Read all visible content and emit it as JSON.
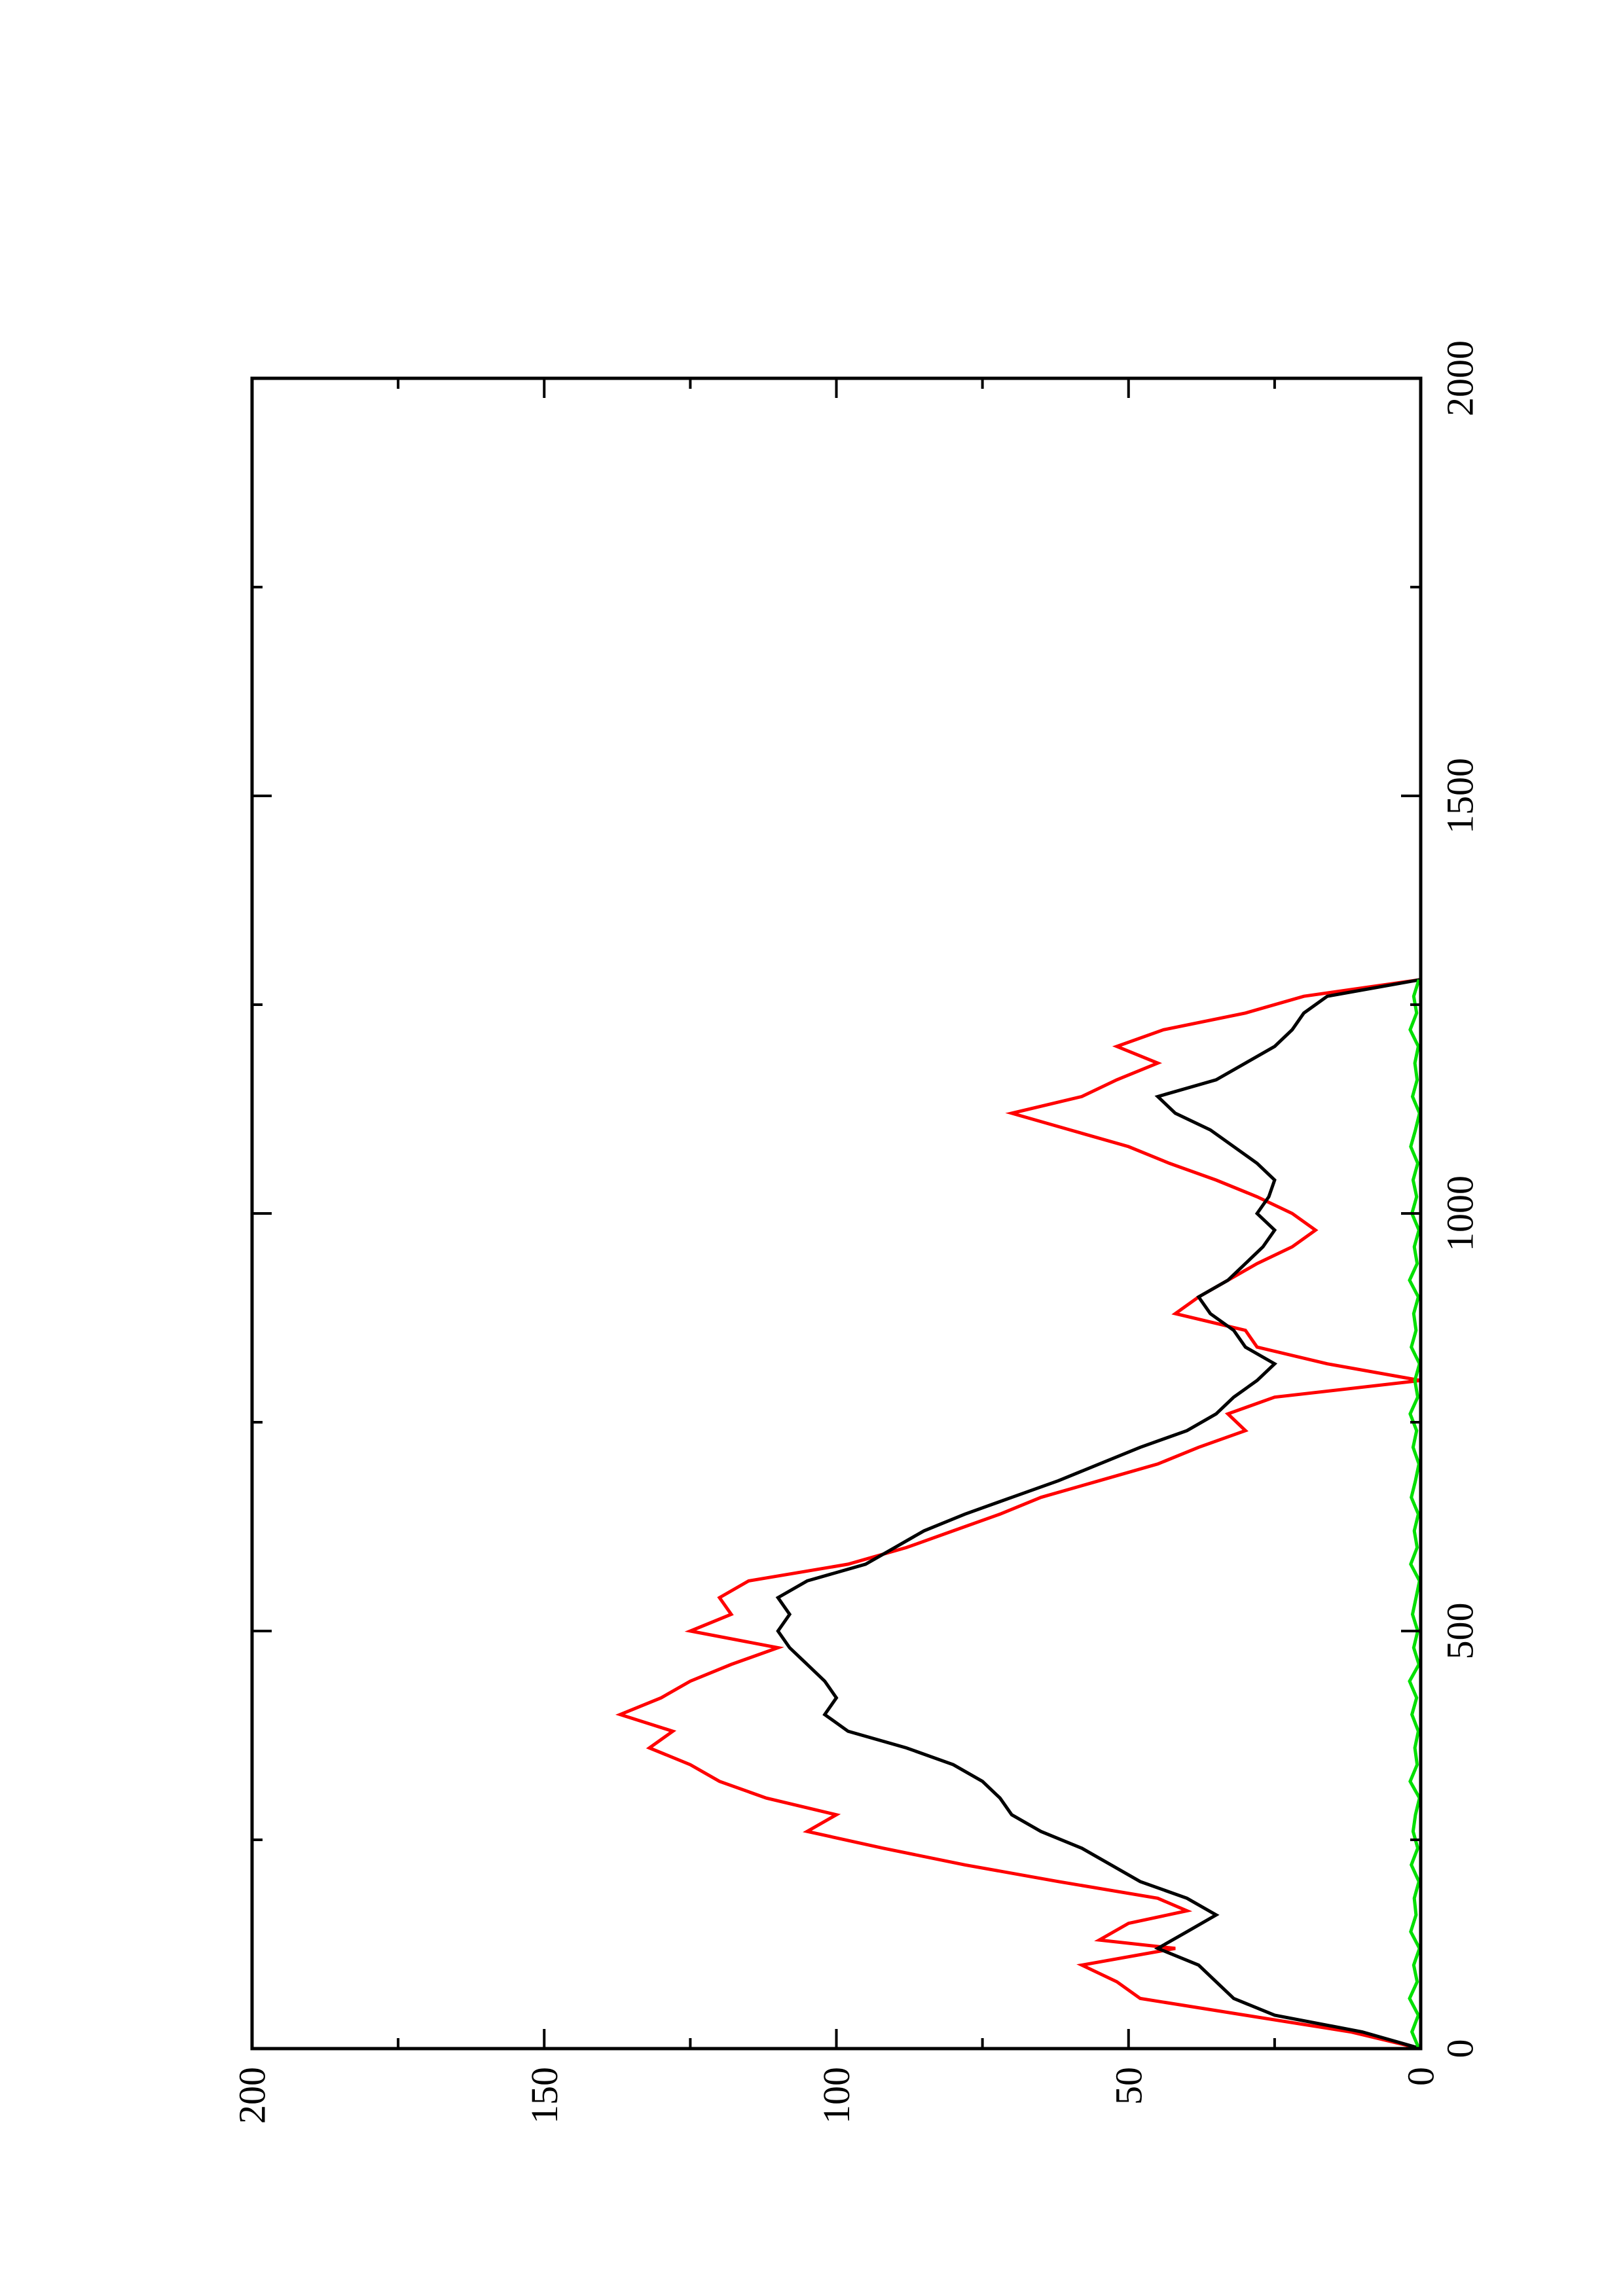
{
  "chart_data": {
    "type": "line",
    "title": "",
    "xlabel": "",
    "ylabel": "",
    "orientation": "rotated-90-counterclockwise",
    "xlim": [
      0,
      2000
    ],
    "ylim": [
      0,
      200
    ],
    "x_major_ticks": [
      0,
      500,
      1000,
      1500,
      2000
    ],
    "x_tick_labels": [
      "0",
      "500",
      "1000",
      "1500",
      "2000"
    ],
    "x_minor_ticks": [
      250,
      750,
      1250,
      1750
    ],
    "y_major_ticks": [
      0,
      50,
      100,
      150,
      200
    ],
    "y_tick_labels": [
      "0",
      "50",
      "100",
      "150",
      "200"
    ],
    "y_minor_ticks": [
      25,
      75,
      125,
      175
    ],
    "grid": false,
    "legend": "none",
    "series": [
      {
        "color": "#ff0000",
        "x": [
          0,
          20,
          40,
          60,
          80,
          100,
          120,
          130,
          150,
          165,
          180,
          200,
          220,
          240,
          260,
          280,
          300,
          320,
          340,
          360,
          380,
          400,
          420,
          440,
          460,
          480,
          500,
          520,
          540,
          560,
          580,
          600,
          620,
          640,
          660,
          680,
          700,
          720,
          740,
          760,
          780,
          800,
          820,
          840,
          860,
          880,
          900,
          920,
          940,
          960,
          980,
          1000,
          1020,
          1040,
          1060,
          1080,
          1100,
          1120,
          1140,
          1160,
          1180,
          1200,
          1220,
          1240,
          1260,
          1280
        ],
        "y": [
          0,
          12,
          30,
          48,
          52,
          58,
          42,
          55,
          50,
          40,
          45,
          62,
          78,
          92,
          105,
          100,
          112,
          120,
          125,
          132,
          128,
          137,
          130,
          125,
          118,
          110,
          125,
          118,
          120,
          115,
          98,
          88,
          80,
          72,
          65,
          55,
          45,
          38,
          30,
          33,
          25,
          0,
          16,
          28,
          30,
          42,
          38,
          33,
          28,
          22,
          18,
          22,
          28,
          35,
          43,
          50,
          60,
          70,
          58,
          52,
          45,
          52,
          44,
          30,
          20,
          0
        ]
      },
      {
        "color": "#000000",
        "x": [
          0,
          20,
          40,
          60,
          80,
          100,
          120,
          140,
          160,
          180,
          200,
          220,
          240,
          260,
          280,
          300,
          320,
          340,
          360,
          380,
          400,
          420,
          440,
          460,
          480,
          500,
          520,
          540,
          560,
          580,
          600,
          620,
          640,
          660,
          680,
          700,
          720,
          740,
          760,
          780,
          800,
          820,
          840,
          860,
          880,
          900,
          920,
          940,
          960,
          980,
          1000,
          1020,
          1040,
          1060,
          1080,
          1100,
          1120,
          1140,
          1160,
          1180,
          1200,
          1220,
          1240,
          1260,
          1280
        ],
        "y": [
          0,
          10,
          25,
          32,
          35,
          38,
          45,
          40,
          35,
          40,
          48,
          53,
          58,
          65,
          70,
          72,
          75,
          80,
          88,
          98,
          102,
          100,
          102,
          105,
          108,
          110,
          108,
          110,
          105,
          95,
          90,
          85,
          78,
          70,
          62,
          55,
          48,
          40,
          35,
          32,
          28,
          25,
          30,
          32,
          36,
          38,
          33,
          30,
          27,
          25,
          28,
          26,
          25,
          28,
          32,
          36,
          42,
          45,
          35,
          30,
          25,
          22,
          20,
          16,
          0
        ]
      },
      {
        "color": "#00e000",
        "x": [
          0,
          20,
          40,
          60,
          80,
          100,
          120,
          140,
          160,
          180,
          200,
          220,
          240,
          260,
          280,
          300,
          320,
          340,
          360,
          380,
          400,
          420,
          440,
          460,
          480,
          500,
          520,
          540,
          560,
          580,
          600,
          620,
          640,
          660,
          680,
          700,
          720,
          740,
          760,
          780,
          800,
          820,
          840,
          860,
          880,
          900,
          920,
          940,
          960,
          980,
          1000,
          1020,
          1040,
          1060,
          1080,
          1100,
          1120,
          1140,
          1160,
          1180,
          1200,
          1220,
          1240,
          1260,
          1280
        ],
        "y": [
          0.3,
          1.5,
          0.4,
          1.9,
          0.6,
          1.2,
          0.2,
          1.7,
          0.8,
          1.1,
          0.3,
          1.6,
          0.5,
          1.3,
          0.9,
          0.2,
          1.8,
          0.6,
          1.0,
          0.4,
          1.5,
          0.7,
          1.9,
          0.3,
          1.2,
          0.5,
          1.4,
          0.8,
          0.2,
          1.7,
          0.6,
          1.1,
          0.4,
          1.6,
          0.9,
          0.3,
          1.3,
          0.7,
          1.8,
          0.5,
          1.0,
          0.2,
          1.6,
          0.8,
          1.2,
          0.4,
          1.9,
          0.6,
          1.1,
          0.3,
          1.5,
          0.7,
          1.3,
          0.5,
          1.7,
          0.9,
          0.2,
          1.4,
          0.6,
          1.0,
          0.4,
          1.8,
          0.7,
          1.2,
          0.3
        ]
      }
    ]
  }
}
